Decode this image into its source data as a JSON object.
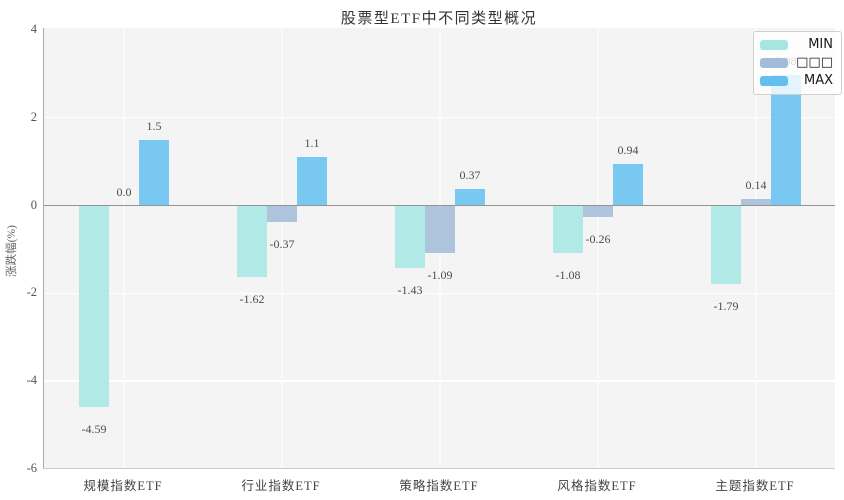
{
  "title": "股票型ETF中不同类型概况",
  "ylabel": "涨跌幅(%)",
  "legend": {
    "items": [
      {
        "label": "MIN",
        "color": "#a5e7e0"
      },
      {
        "label": "□□□",
        "color": "#a3bcd9"
      },
      {
        "label": "MAX",
        "color": "#64bfee"
      }
    ]
  },
  "chart_data": {
    "type": "bar",
    "title": "股票型ETF中不同类型概况",
    "xlabel": "",
    "ylabel": "涨跌幅(%)",
    "categories": [
      "规模指数ETF",
      "行业指数ETF",
      "策略指数ETF",
      "风格指数ETF",
      "主题指数ETF"
    ],
    "series": [
      {
        "name": "MIN",
        "color": "#b0e9e5",
        "values": [
          -4.59,
          -1.62,
          -1.43,
          -1.08,
          -1.79
        ],
        "labels": [
          "-4.59",
          "-1.62",
          "-1.43",
          "-1.08",
          "-1.79"
        ]
      },
      {
        "name": "□□□",
        "color": "#aec3dc",
        "values": [
          0.0,
          -0.37,
          -1.09,
          -0.26,
          0.14
        ],
        "labels": [
          "0.0",
          "-0.37",
          "-1.09",
          "-0.26",
          "0.14"
        ]
      },
      {
        "name": "MAX",
        "color": "#79c8f2",
        "values": [
          1.5,
          1.1,
          0.37,
          0.94,
          2.98
        ],
        "labels": [
          "1.5",
          "1.1",
          "0.37",
          "0.94",
          "2.98"
        ]
      }
    ],
    "yticks": [
      4,
      2,
      0,
      -2,
      -4,
      -6
    ],
    "ylim": [
      -6,
      4
    ],
    "grid": true,
    "legend_position": "upper right",
    "plot_bg": "#f4f4f5",
    "zero_line_color": "#949494"
  }
}
